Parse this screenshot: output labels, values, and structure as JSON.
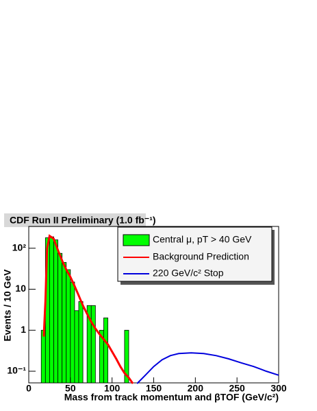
{
  "chart_data": {
    "type": "histogram",
    "title": "CDF Run II Preliminary (1.0 fb⁻¹)",
    "xlabel": "Mass from track momentum and βTOF (GeV/c²)",
    "ylabel": "Events / 10 GeV",
    "name": "Central μ, pT > 40 GeV",
    "color": "#00ff00",
    "bins": [
      15,
      20,
      25,
      30,
      35,
      40,
      45,
      50,
      55,
      60,
      65,
      70,
      75,
      80,
      85,
      90,
      95,
      100,
      105,
      110,
      115,
      120
    ],
    "values": [
      1,
      180,
      190,
      160,
      75,
      45,
      30,
      15,
      3,
      5,
      0,
      4,
      4,
      0,
      1,
      2,
      0,
      0,
      0,
      0,
      1
    ],
    "lines": [
      {
        "name": "Background Prediction",
        "color": "#ff0000",
        "x": [
          18,
          20,
          22,
          25,
          30,
          35,
          40,
          45,
          50,
          55,
          60,
          65,
          70,
          75,
          80,
          85,
          90,
          95,
          100,
          105,
          110,
          115,
          120,
          125
        ],
        "values": [
          0.7,
          5,
          100,
          200,
          170,
          90,
          50,
          30,
          20,
          12,
          7,
          4,
          2.5,
          1.6,
          1.1,
          0.8,
          0.6,
          0.45,
          0.3,
          0.2,
          0.13,
          0.09,
          0.07,
          0.05
        ]
      },
      {
        "name": "220 GeV/c² Stop",
        "color": "#0000dd",
        "x": [
          130,
          140,
          150,
          160,
          170,
          180,
          195,
          210,
          225,
          240,
          255,
          270,
          285,
          300
        ],
        "values": [
          0.05,
          0.08,
          0.13,
          0.19,
          0.24,
          0.27,
          0.28,
          0.27,
          0.24,
          0.2,
          0.16,
          0.13,
          0.1,
          0.08
        ]
      }
    ],
    "xlim": [
      0,
      300
    ],
    "ylim": [
      0.052,
      340
    ],
    "log_y": true,
    "xticks": [
      0,
      50,
      100,
      150,
      200,
      250,
      300
    ],
    "yticks": [
      {
        "value": 0.1,
        "label": "10⁻¹"
      },
      1,
      10,
      {
        "value": 100,
        "label": "10²"
      }
    ]
  }
}
